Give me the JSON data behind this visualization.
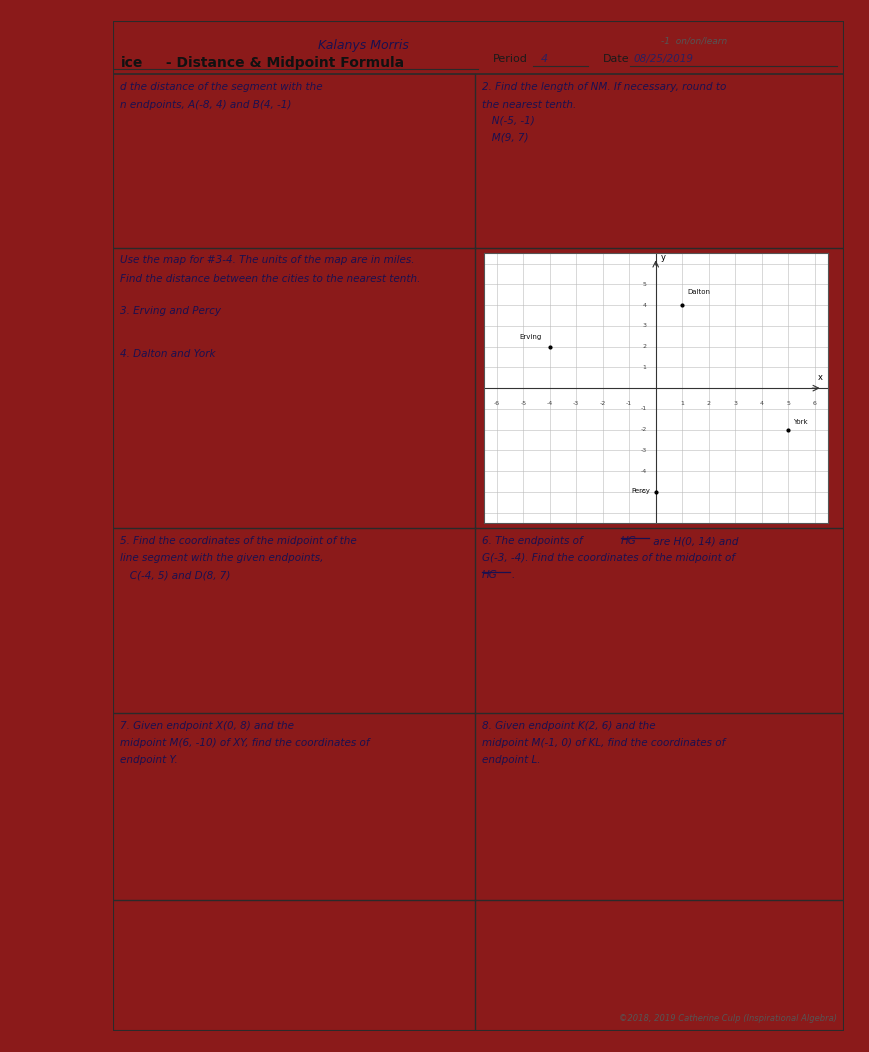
{
  "student_name": "Kalanys Morris",
  "title_ice": "ice",
  "title_main": " - Distance & Midpoint Formula",
  "period_val": "4",
  "date_val": "08/25/2019",
  "top_right_note": "-1  on/on/learn",
  "q1_line1": "d the distance of the segment with the",
  "q1_line2": "n endpoints, A(-8, 4) and B(4, -1)",
  "q2_line1": "2. Find the length of NM. If necessary, round to",
  "q2_line2": "the nearest tenth.",
  "q2_line3": "   N(-5, -1)",
  "q2_line4": "   M(9, 7)",
  "map_intro1": "Use the map for #3-4. The units of the map are in miles.",
  "map_intro2": "Find the distance between the cities to the nearest tenth.",
  "q3": "3. Erving and Percy",
  "q4": "4. Dalton and York",
  "q5_line1": "5. Find the coordinates of the midpoint of the",
  "q5_line2": "line segment with the given endpoints,",
  "q5_line3": "   C(-4, 5) and D(8, 7)",
  "q6_line1a": "6. The endpoints of ",
  "q6_hg": "HG",
  "q6_line1b": " are H(0, 14) and",
  "q6_line2": "G(-3, -4). Find the coordinates of the midpoint of",
  "q6_line3": "HG",
  "q6_line3b": ".",
  "q7_line1": "7. Given endpoint X(0, 8) and the",
  "q7_line2": "midpoint M(6, -10) of XY, find the coordinates of",
  "q7_line3": "endpoint Y.",
  "q8_line1": "8. Given endpoint K(2, 6) and the",
  "q8_line2": "midpoint M(-1, 0) of KL, find the coordinates of",
  "q8_line3": "endpoint L.",
  "copyright": "©2018, 2019 Catherine Culp (Inspirational Algebra)",
  "bg_red": "#8b1a1a",
  "paper_white": "#f0eeeb",
  "line_color": "#2a2a2a",
  "text_color": "#1a1a1a",
  "handwriting_color": "#2a2060"
}
